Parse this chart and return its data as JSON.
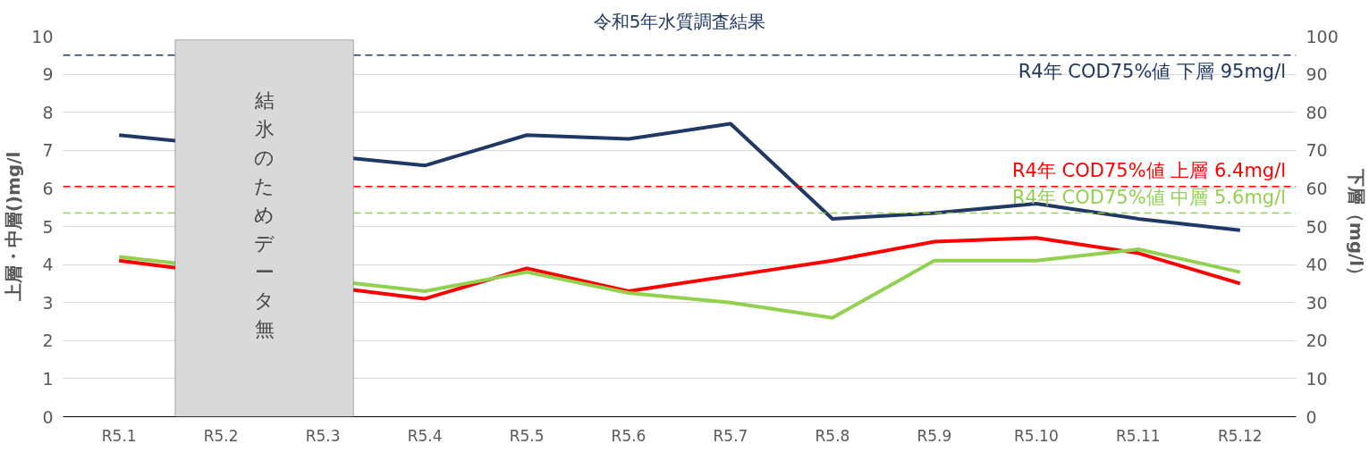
{
  "chart_data": {
    "type": "line",
    "title": "令和5年水質調査結果",
    "categories": [
      "R5.1",
      "R5.2",
      "R5.3",
      "R5.4",
      "R5.5",
      "R5.6",
      "R5.7",
      "R5.8",
      "R5.9",
      "R5.10",
      "R5.11",
      "R5.12"
    ],
    "series": [
      {
        "color": "#1f3864",
        "axis": "y2",
        "values": [
          74,
          null,
          null,
          66,
          74,
          73,
          77,
          52,
          53.5,
          56,
          52,
          49
        ]
      },
      {
        "color": "#ff0000",
        "values": [
          4.1,
          null,
          null,
          3.1,
          3.9,
          3.3,
          3.7,
          4.1,
          4.6,
          4.7,
          4.3,
          3.5
        ]
      },
      {
        "color": "#92d050",
        "values": [
          4.2,
          null,
          null,
          3.3,
          3.8,
          3.25,
          3.0,
          2.6,
          4.1,
          4.1,
          4.4,
          3.8
        ]
      }
    ],
    "ylabel": "上層・中層()mg/l",
    "y2label": "下層（mg/l）",
    "ylim": [
      0,
      10
    ],
    "yticks": [
      0,
      1,
      2,
      3,
      4,
      5,
      6,
      7,
      8,
      9,
      10
    ],
    "y2lim": [
      0,
      100
    ],
    "y2ticks": [
      0,
      10,
      20,
      30,
      40,
      50,
      60,
      70,
      80,
      90,
      100
    ],
    "ref_lines": [
      {
        "axis": "y2",
        "value": 95,
        "label": "R4年 COD75%値 下層 95mg/l",
        "color": "#1f3864",
        "line_style": "dashed"
      },
      {
        "axis": "y",
        "value": 6.05,
        "label": "R4年 COD75%値 上層 6.4mg/l",
        "color": "#ff0000",
        "line_style": "dashed"
      },
      {
        "axis": "y",
        "value": 5.35,
        "label": "R4年 COD75%値 中層 5.6mg/l",
        "color": "#92d050",
        "line_style": "dashed"
      }
    ],
    "bands": [
      {
        "axis": "x",
        "from": "R5.2",
        "to": "R5.3",
        "label": "結氷のためデータ無",
        "color": "#d9d9d9"
      }
    ],
    "grid": "y"
  }
}
